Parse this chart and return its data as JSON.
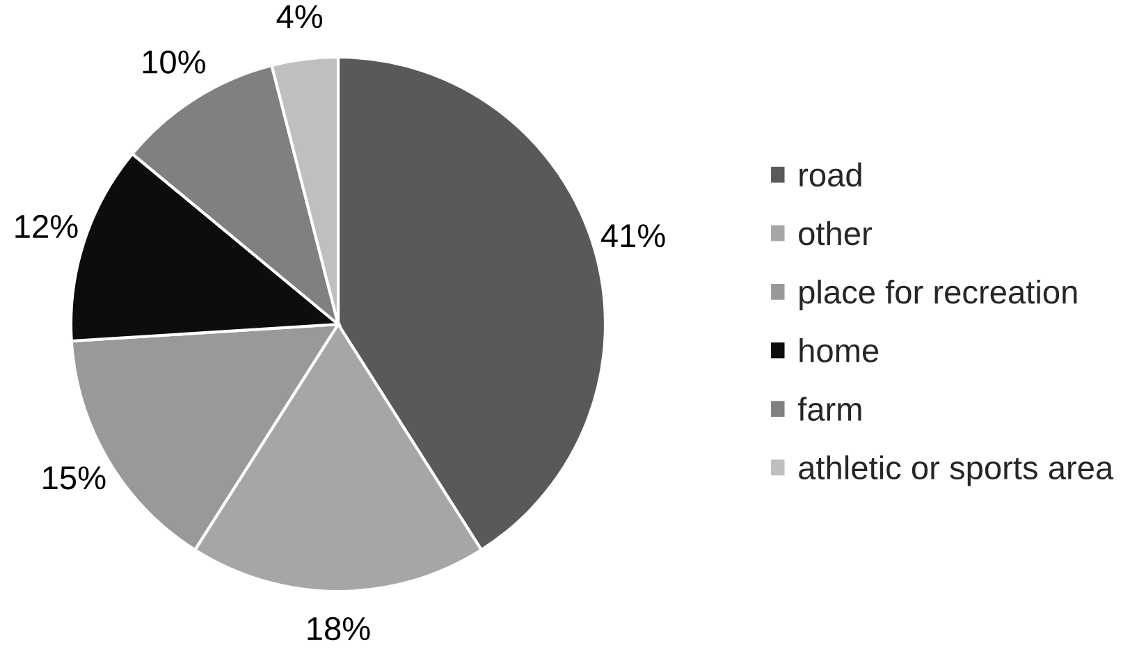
{
  "chart_data": {
    "type": "pie",
    "categories": [
      "road",
      "other",
      "place for recreation",
      "home",
      "farm",
      "athletic or sports area"
    ],
    "values": [
      41,
      18,
      15,
      12,
      10,
      4
    ],
    "value_labels": [
      "41%",
      "18%",
      "15%",
      "12%",
      "10%",
      "4%"
    ],
    "colors": [
      "#595959",
      "#a6a6a6",
      "#999999",
      "#0d0d0d",
      "#808080",
      "#bfbfbf"
    ],
    "legend": "right"
  }
}
